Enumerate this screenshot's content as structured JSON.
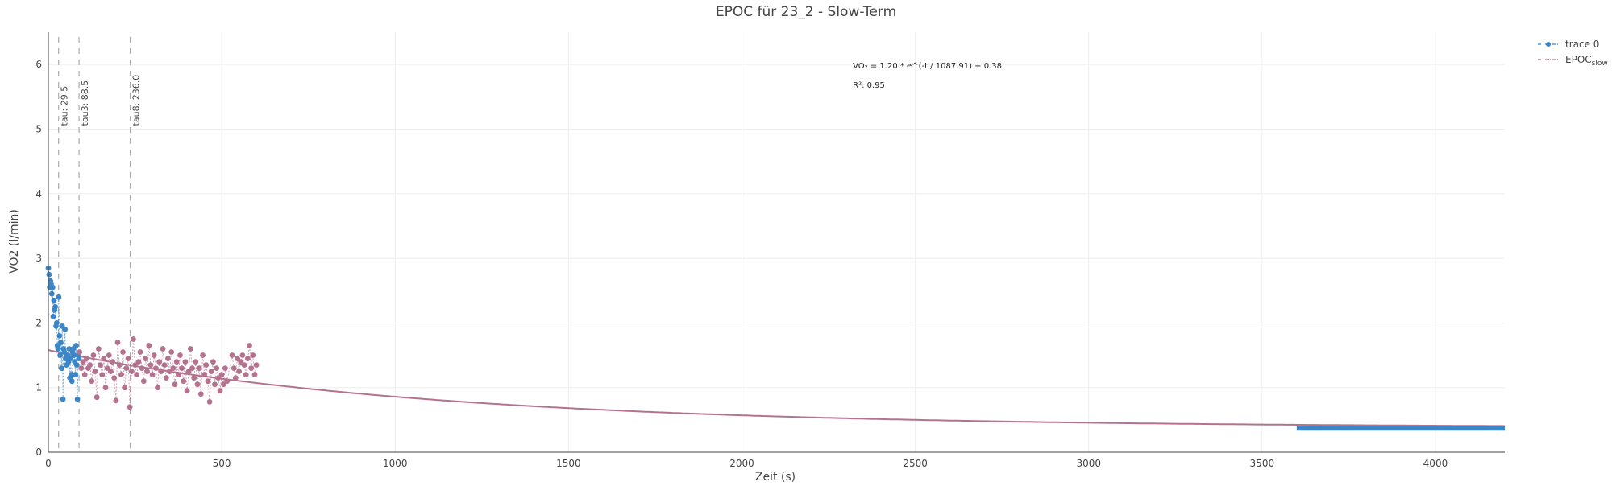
{
  "chart_data": {
    "type": "scatter",
    "title": "EPOC für 23_2 - Slow-Term",
    "xlabel": "Zeit (s)",
    "ylabel": "VO2 (l/min)",
    "xlim": [
      0,
      4200
    ],
    "ylim": [
      0,
      6.5
    ],
    "x_ticks": [
      0,
      500,
      1000,
      1500,
      2000,
      2500,
      3000,
      3500,
      4000
    ],
    "y_ticks": [
      0,
      1,
      2,
      3,
      4,
      5,
      6
    ],
    "grid": true,
    "legend_position": "top-right",
    "colors": {
      "trace0": "#3a86c8",
      "slow": "#b5728f",
      "fit": "#b5728f",
      "tau_lines": "#aaaaaa",
      "axis": "#444444",
      "grid": "#eeeeee"
    },
    "tau_lines": [
      {
        "x": 29.5,
        "label": "tau: 29.5"
      },
      {
        "x": 88.5,
        "label": "tau3: 88.5"
      },
      {
        "x": 236.0,
        "label": "tau8: 236.0"
      }
    ],
    "annotation": {
      "equation": "VO₂ = 1.20 * e^(-t / 1087.91) + 0.38",
      "r2": "R²: 0.95",
      "anchor": {
        "x": 2320,
        "y": 6.0
      }
    },
    "fit": {
      "a": 1.2,
      "tau": 1087.91,
      "c": 0.38,
      "x_range": [
        0,
        4200
      ]
    },
    "series": [
      {
        "name": "trace 0",
        "legend_label": "trace 0",
        "style": "dots-dash",
        "color": "#3a86c8",
        "points": [
          [
            0,
            2.85
          ],
          [
            2,
            2.75
          ],
          [
            4,
            2.55
          ],
          [
            6,
            2.65
          ],
          [
            8,
            2.6
          ],
          [
            10,
            2.45
          ],
          [
            12,
            2.55
          ],
          [
            14,
            2.1
          ],
          [
            16,
            2.35
          ],
          [
            18,
            2.2
          ],
          [
            20,
            2.25
          ],
          [
            22,
            1.95
          ],
          [
            24,
            2.0
          ],
          [
            26,
            1.65
          ],
          [
            28,
            1.6
          ],
          [
            30,
            2.4
          ],
          [
            32,
            1.8
          ],
          [
            34,
            1.5
          ],
          [
            36,
            1.7
          ],
          [
            38,
            1.3
          ],
          [
            40,
            1.95
          ],
          [
            42,
            0.82
          ],
          [
            44,
            1.6
          ],
          [
            46,
            1.55
          ],
          [
            48,
            1.9
          ],
          [
            50,
            1.45
          ],
          [
            52,
            1.35
          ],
          [
            54,
            1.5
          ],
          [
            56,
            1.5
          ],
          [
            58,
            1.4
          ],
          [
            60,
            1.6
          ],
          [
            62,
            1.15
          ],
          [
            64,
            1.45
          ],
          [
            66,
            1.2
          ],
          [
            68,
            1.1
          ],
          [
            70,
            1.55
          ],
          [
            72,
            1.6
          ],
          [
            74,
            1.5
          ],
          [
            76,
            1.4
          ],
          [
            78,
            1.2
          ],
          [
            80,
            1.65
          ],
          [
            82,
            1.35
          ],
          [
            84,
            0.82
          ],
          [
            86,
            1.5
          ],
          [
            88,
            1.45
          ]
        ],
        "tail": {
          "x_range": [
            3600,
            4200
          ],
          "y": 0.37
        }
      },
      {
        "name": "EPOC_slow",
        "legend_label": "EPOC",
        "legend_sub": "slow",
        "style": "dots-dash",
        "color": "#b5728f",
        "points": [
          [
            90,
            1.55
          ],
          [
            95,
            1.3
          ],
          [
            100,
            1.4
          ],
          [
            105,
            1.2
          ],
          [
            110,
            1.45
          ],
          [
            115,
            1.3
          ],
          [
            120,
            1.35
          ],
          [
            125,
            1.1
          ],
          [
            130,
            1.5
          ],
          [
            135,
            1.25
          ],
          [
            140,
            0.85
          ],
          [
            145,
            1.6
          ],
          [
            150,
            1.35
          ],
          [
            155,
            1.2
          ],
          [
            160,
            1.45
          ],
          [
            165,
            1.0
          ],
          [
            170,
            1.3
          ],
          [
            175,
            1.5
          ],
          [
            180,
            1.25
          ],
          [
            185,
            1.4
          ],
          [
            190,
            1.15
          ],
          [
            195,
            0.8
          ],
          [
            200,
            1.7
          ],
          [
            205,
            1.35
          ],
          [
            210,
            1.2
          ],
          [
            215,
            1.55
          ],
          [
            220,
            1.0
          ],
          [
            225,
            1.3
          ],
          [
            230,
            1.45
          ],
          [
            235,
            0.7
          ],
          [
            240,
            1.25
          ],
          [
            245,
            1.75
          ],
          [
            250,
            1.35
          ],
          [
            255,
            1.2
          ],
          [
            260,
            1.4
          ],
          [
            265,
            1.55
          ],
          [
            270,
            1.3
          ],
          [
            275,
            1.1
          ],
          [
            280,
            1.45
          ],
          [
            285,
            1.25
          ],
          [
            290,
            1.65
          ],
          [
            295,
            1.35
          ],
          [
            300,
            1.2
          ],
          [
            305,
            1.5
          ],
          [
            310,
            1.3
          ],
          [
            315,
            1.0
          ],
          [
            320,
            1.4
          ],
          [
            325,
            1.25
          ],
          [
            330,
            1.6
          ],
          [
            335,
            1.35
          ],
          [
            340,
            1.15
          ],
          [
            345,
            1.45
          ],
          [
            350,
            1.25
          ],
          [
            355,
            1.55
          ],
          [
            360,
            1.3
          ],
          [
            365,
            1.05
          ],
          [
            370,
            1.4
          ],
          [
            375,
            1.2
          ],
          [
            380,
            1.5
          ],
          [
            385,
            1.3
          ],
          [
            390,
            1.1
          ],
          [
            395,
            1.4
          ],
          [
            400,
            0.95
          ],
          [
            405,
            1.25
          ],
          [
            410,
            1.6
          ],
          [
            415,
            1.3
          ],
          [
            420,
            1.15
          ],
          [
            425,
            1.4
          ],
          [
            430,
            1.05
          ],
          [
            435,
            1.3
          ],
          [
            440,
            0.9
          ],
          [
            445,
            1.5
          ],
          [
            450,
            1.2
          ],
          [
            455,
            1.35
          ],
          [
            460,
            1.1
          ],
          [
            465,
            0.78
          ],
          [
            470,
            1.25
          ],
          [
            475,
            1.4
          ],
          [
            480,
            1.05
          ],
          [
            485,
            1.3
          ],
          [
            490,
            1.15
          ],
          [
            495,
            0.95
          ],
          [
            500,
            1.2
          ],
          [
            505,
            1.05
          ],
          [
            510,
            1.3
          ],
          [
            515,
            1.1
          ],
          [
            530,
            1.5
          ],
          [
            535,
            1.3
          ],
          [
            540,
            1.15
          ],
          [
            545,
            1.45
          ],
          [
            550,
            1.25
          ],
          [
            555,
            1.4
          ],
          [
            560,
            1.5
          ],
          [
            565,
            1.35
          ],
          [
            570,
            1.2
          ],
          [
            575,
            1.45
          ],
          [
            580,
            1.65
          ],
          [
            585,
            1.3
          ],
          [
            590,
            1.5
          ],
          [
            595,
            1.2
          ],
          [
            600,
            1.35
          ]
        ]
      }
    ]
  }
}
